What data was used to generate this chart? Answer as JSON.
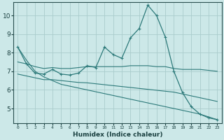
{
  "xlabel": "Humidex (Indice chaleur)",
  "bg_color": "#cce8e8",
  "grid_color": "#aacccc",
  "line_color": "#2d7a7a",
  "xlim_min": -0.5,
  "xlim_max": 23.5,
  "ylim_min": 4.2,
  "ylim_max": 10.7,
  "yticks": [
    5,
    6,
    7,
    8,
    9,
    10
  ],
  "xticks": [
    0,
    1,
    2,
    3,
    4,
    5,
    6,
    7,
    8,
    9,
    10,
    11,
    12,
    13,
    14,
    15,
    16,
    17,
    18,
    19,
    20,
    21,
    22,
    23
  ],
  "series1_x": [
    0,
    1,
    2,
    3,
    4,
    5,
    6,
    7,
    8,
    9,
    10,
    11,
    12,
    13,
    14,
    15,
    16,
    17,
    18,
    19,
    20,
    21,
    22,
    23
  ],
  "series1_y": [
    8.3,
    7.4,
    6.9,
    6.85,
    7.1,
    6.85,
    6.8,
    6.9,
    7.3,
    7.2,
    8.3,
    7.9,
    7.7,
    8.8,
    9.3,
    10.55,
    10.0,
    8.85,
    7.0,
    5.85,
    5.1,
    4.7,
    4.5,
    4.4
  ],
  "series2_x": [
    0,
    1,
    2,
    3,
    4,
    5,
    6,
    7,
    8,
    9,
    10,
    11,
    12,
    13,
    14,
    15,
    16,
    17,
    18,
    19,
    20,
    21,
    22,
    23
  ],
  "series2_y": [
    7.5,
    7.4,
    7.25,
    7.15,
    7.2,
    7.15,
    7.15,
    7.2,
    7.25,
    7.25,
    7.25,
    7.25,
    7.25,
    7.3,
    7.3,
    7.3,
    7.25,
    7.25,
    7.15,
    7.1,
    7.1,
    7.1,
    7.05,
    7.0
  ],
  "series3_x": [
    0,
    1,
    2,
    3,
    4,
    5,
    6,
    7,
    8,
    9,
    10,
    11,
    12,
    13,
    14,
    15,
    16,
    17,
    18,
    19,
    20,
    21,
    22,
    23
  ],
  "series3_y": [
    6.85,
    6.75,
    6.65,
    6.55,
    6.55,
    6.5,
    6.45,
    6.4,
    6.38,
    6.33,
    6.28,
    6.23,
    6.18,
    6.13,
    6.08,
    6.03,
    5.98,
    5.93,
    5.88,
    5.78,
    5.68,
    5.58,
    5.48,
    5.38
  ],
  "series4_x": [
    0,
    1,
    2,
    3,
    4,
    5,
    6,
    7,
    8,
    9,
    10,
    11,
    12,
    13,
    14,
    15,
    16,
    17,
    18,
    19,
    20,
    21,
    22,
    23
  ],
  "series4_y": [
    8.3,
    7.6,
    7.0,
    6.7,
    6.5,
    6.3,
    6.2,
    6.1,
    6.0,
    5.9,
    5.8,
    5.7,
    5.6,
    5.5,
    5.4,
    5.3,
    5.2,
    5.1,
    5.0,
    4.9,
    4.8,
    4.7,
    4.55,
    4.4
  ]
}
